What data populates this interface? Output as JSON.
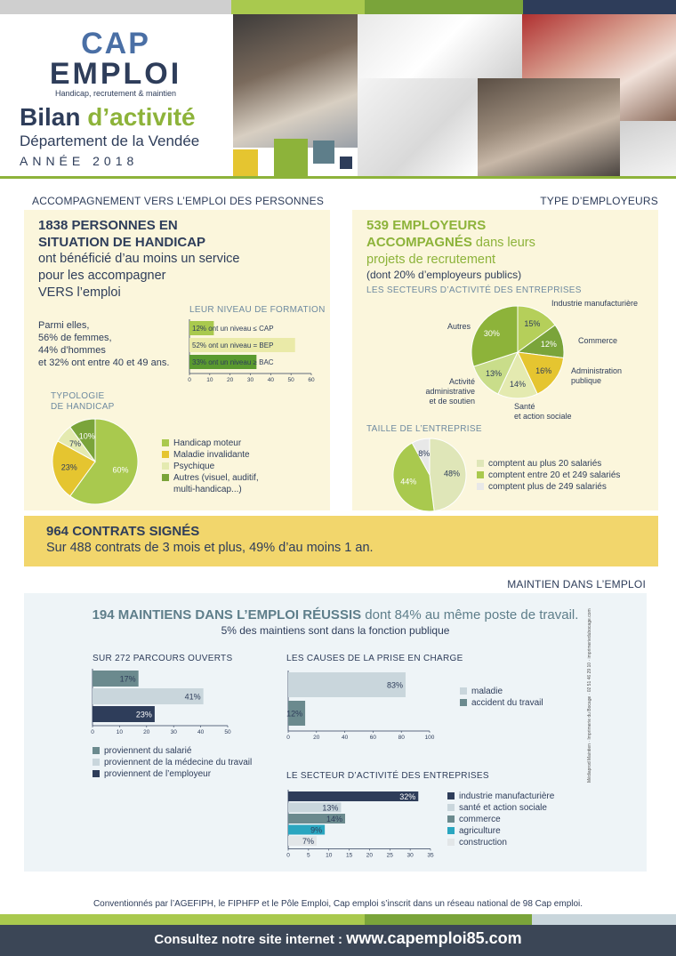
{
  "header": {
    "logo_cap": "CAP",
    "logo_emploi": "EMPLOI",
    "logo_tagline": "Handicap, recrutement & maintien",
    "title_part1": "Bilan",
    "title_part2": "d’activité",
    "department": "Département de la Vendée",
    "year": "ANNÉE 2018",
    "colors": {
      "navy": "#2e3d5a",
      "green": "#8db33a",
      "yellow": "#e5c530",
      "slate": "#5e7e8a"
    }
  },
  "section_persons": {
    "heading": "ACCOMPAGNEMENT VERS L’EMPLOI DES PERSONNES",
    "title_line1": "1838 PERSONNES EN",
    "title_line2": "SITUATION DE HANDICAP",
    "sub_line1": "ont bénéficié d’au moins un service",
    "sub_line2": "pour les accompagner",
    "sub_line3": "VERS l’emploi",
    "stats_line1": "Parmi elles,",
    "stats_line2": "56% de femmes,",
    "stats_line3": "44% d’hommes",
    "stats_line4": "et 32% ont entre 40 et 49 ans.",
    "formation_title": "LEUR NIVEAU DE FORMATION",
    "typologie_title_line1": "TYPOLOGIE",
    "typologie_title_line2": "DE HANDICAP"
  },
  "section_employers": {
    "heading": "TYPE D’EMPLOYEURS",
    "title_line1": "539 EMPLOYEURS",
    "title_line2_bold": "ACCOMPAGNÉS",
    "title_line2_rest": " dans leurs",
    "title_line3": "projets de recrutement",
    "sub": "(dont 20% d’employeurs publics)",
    "secteurs_title": "LES SECTEURS D’ACTIVITÉ DES ENTREPRISES",
    "taille_title": "TAILLE DE L’ENTREPRISE"
  },
  "contracts": {
    "title": "964 CONTRATS SIGNÉS",
    "sub": "Sur 488 contrats de 3 mois et plus, 49% d’au moins 1 an."
  },
  "section_maintien": {
    "heading": "MAINTIEN DANS L’EMPLOI",
    "title_bold": "194 MAINTIENS DANS L’EMPLOI RÉUSSIS",
    "title_rest": " dont 84% au même poste de travail.",
    "sub": "5% des maintiens sont dans la fonction publique",
    "parcours_title": "SUR 272 PARCOURS OUVERTS",
    "causes_title": "LES CAUSES DE LA PRISE EN CHARGE",
    "secteur_title": "LE SECTEUR D’ACTIVITÉ DES ENTREPRISES"
  },
  "side_credit": "Médiaprod Maintien · Imprimerie du Bocage · 02 51 46 29 10 · imprimeriedubocage.com",
  "footer": {
    "convention": "Conventionnés par l’AGEFIPH, le FIPHFP et le Pôle Emploi, Cap emploi s’inscrit dans un réseau national de 98 Cap emploi.",
    "site_prefix": "Consultez notre site internet : ",
    "site_url": "www.capemploi85.com"
  },
  "chart_data": [
    {
      "id": "formation",
      "type": "bar",
      "orientation": "horizontal",
      "title": "LEUR NIVEAU DE FORMATION",
      "categories": [
        "12% ont un niveau ≤ CAP",
        "52% ont un niveau = BEP",
        "33% ont un niveau ≥ BAC"
      ],
      "values": [
        12,
        52,
        33
      ],
      "colors": [
        "#a9c94e",
        "#eaeaa8",
        "#5a9a2f"
      ],
      "xlim": [
        0,
        60
      ],
      "xticks": [
        "0",
        "10",
        "20",
        "30",
        "40",
        "50",
        "60"
      ]
    },
    {
      "id": "typologie",
      "type": "pie",
      "title": "TYPOLOGIE DE HANDICAP",
      "categories": [
        "Handicap moteur",
        "Maladie invalidante",
        "Psychique",
        "Autres (visuel, auditif, multi-handicap...)"
      ],
      "values": [
        60,
        23,
        7,
        10
      ],
      "labels": [
        "60%",
        "23%",
        "7%",
        "10%"
      ],
      "colors": [
        "#a9c94e",
        "#e5c530",
        "#e4eab0",
        "#7aa43a"
      ]
    },
    {
      "id": "secteurs_employeurs",
      "type": "pie",
      "title": "LES SECTEURS D’ACTIVITÉ DES ENTREPRISES",
      "categories": [
        "Industrie manufacturière",
        "Commerce",
        "Administration publique",
        "Santé et action sociale",
        "Activité administrative et de soutien",
        "Autres"
      ],
      "values": [
        15,
        12,
        16,
        14,
        13,
        30
      ],
      "labels": [
        "15%",
        "12%",
        "16%",
        "14%",
        "13%",
        "30%"
      ],
      "colors": [
        "#b5cf5a",
        "#7aa43a",
        "#e5c530",
        "#e4eab0",
        "#c9dd8a",
        "#8db33a"
      ]
    },
    {
      "id": "taille",
      "type": "pie",
      "title": "TAILLE DE L’ENTREPRISE",
      "categories": [
        "comptent au plus 20 salariés",
        "comptent entre 20 et 249 salariés",
        "comptent plus de 249 salariés"
      ],
      "values": [
        48,
        44,
        8
      ],
      "labels": [
        "48%",
        "44%",
        "8%"
      ],
      "colors": [
        "#dfe6b8",
        "#a9c94e",
        "#e8e8e8"
      ]
    },
    {
      "id": "parcours",
      "type": "bar",
      "orientation": "horizontal",
      "title": "SUR 272 PARCOURS OUVERTS",
      "categories": [
        "proviennent du salarié",
        "proviennent de la médecine du travail",
        "proviennent de l’employeur"
      ],
      "values": [
        17,
        41,
        23
      ],
      "labels": [
        "17%",
        "41%",
        "23%"
      ],
      "colors": [
        "#6b8a8e",
        "#c9d6dc",
        "#2e3d5a"
      ],
      "xlim": [
        0,
        50
      ],
      "xticks": [
        "0",
        "10",
        "20",
        "30",
        "40",
        "50"
      ]
    },
    {
      "id": "causes",
      "type": "bar",
      "orientation": "horizontal",
      "title": "LES CAUSES DE LA PRISE EN CHARGE",
      "categories": [
        "maladie",
        "accident du travail"
      ],
      "values": [
        83,
        12
      ],
      "labels": [
        "83%",
        "12%"
      ],
      "colors": [
        "#c9d6dc",
        "#6b8a8e"
      ],
      "xlim": [
        0,
        100
      ],
      "xticks": [
        "0",
        "20",
        "40",
        "60",
        "80",
        "100"
      ]
    },
    {
      "id": "secteur_maintien",
      "type": "bar",
      "orientation": "horizontal",
      "title": "LE SECTEUR D’ACTIVITÉ DES ENTREPRISES",
      "categories": [
        "industrie manufacturière",
        "santé et action sociale",
        "commerce",
        "agriculture",
        "construction"
      ],
      "values": [
        32,
        13,
        14,
        9,
        7
      ],
      "labels": [
        "32%",
        "13%",
        "14%",
        "9%",
        "7%"
      ],
      "colors": [
        "#2e3d5a",
        "#c9d6dc",
        "#6b8a8e",
        "#2aa6c0",
        "#e2e6e8"
      ],
      "xlim": [
        0,
        35
      ],
      "xticks": [
        "0",
        "5",
        "10",
        "15",
        "20",
        "25",
        "30",
        "35"
      ]
    }
  ]
}
